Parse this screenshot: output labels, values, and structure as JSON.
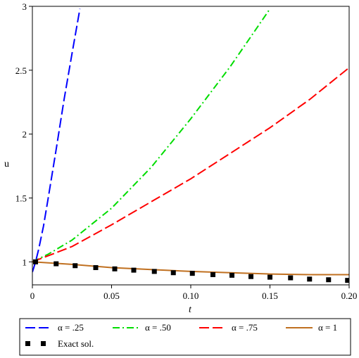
{
  "chart_data": {
    "type": "line",
    "xlabel": "t",
    "ylabel": "u",
    "xlim": [
      0,
      0.2
    ],
    "ylim": [
      0.82,
      3.0
    ],
    "xticks": [
      {
        "value": 0,
        "label": "0"
      },
      {
        "value": 0.05,
        "label": "0.05"
      },
      {
        "value": 0.1,
        "label": "0.10"
      },
      {
        "value": 0.15,
        "label": "0.15"
      },
      {
        "value": 0.2,
        "label": "0.20"
      }
    ],
    "yticks": [
      {
        "value": 1,
        "label": "1"
      },
      {
        "value": 1.5,
        "label": "1.5"
      },
      {
        "value": 2,
        "label": "2"
      },
      {
        "value": 2.5,
        "label": "2.5"
      },
      {
        "value": 3,
        "label": "3"
      }
    ],
    "grid": false,
    "legend_position": "bottom",
    "series": [
      {
        "name": "α = .25",
        "color": "#0000ff",
        "style": "dash",
        "x": [
          0,
          0.001,
          0.002,
          0.004,
          0.007,
          0.01,
          0.015,
          0.02,
          0.025,
          0.03
        ],
        "y": [
          0.92,
          0.96,
          1.0,
          1.1,
          1.28,
          1.5,
          1.88,
          2.27,
          2.63,
          2.98
        ]
      },
      {
        "name": "α = .50",
        "color": "#00dd00",
        "style": "dashdot",
        "x": [
          0,
          0.01,
          0.025,
          0.05,
          0.075,
          0.1,
          0.125,
          0.15
        ],
        "y": [
          1.0,
          1.06,
          1.17,
          1.42,
          1.74,
          2.12,
          2.53,
          2.98
        ]
      },
      {
        "name": "α = .75",
        "color": "#ff0000",
        "style": "dash",
        "x": [
          0,
          0.025,
          0.05,
          0.075,
          0.1,
          0.125,
          0.15,
          0.175,
          0.2
        ],
        "y": [
          1.0,
          1.12,
          1.29,
          1.47,
          1.65,
          1.85,
          2.05,
          2.27,
          2.52
        ]
      },
      {
        "name": "α = 1",
        "color": "#c07020",
        "style": "solid",
        "x": [
          0,
          0.025,
          0.05,
          0.075,
          0.1,
          0.125,
          0.15,
          0.175,
          0.2
        ],
        "y": [
          1.0,
          0.98,
          0.955,
          0.94,
          0.925,
          0.915,
          0.905,
          0.9,
          0.9
        ]
      },
      {
        "name": "Exact sol.",
        "color": "#000000",
        "style": "square-markers",
        "x": [
          0.002,
          0.015,
          0.027,
          0.04,
          0.052,
          0.064,
          0.077,
          0.089,
          0.101,
          0.114,
          0.126,
          0.138,
          0.15,
          0.163,
          0.175,
          0.187,
          0.199
        ],
        "y": [
          1.0,
          0.985,
          0.97,
          0.955,
          0.945,
          0.935,
          0.925,
          0.915,
          0.91,
          0.9,
          0.895,
          0.885,
          0.88,
          0.875,
          0.865,
          0.86,
          0.855
        ]
      }
    ]
  }
}
